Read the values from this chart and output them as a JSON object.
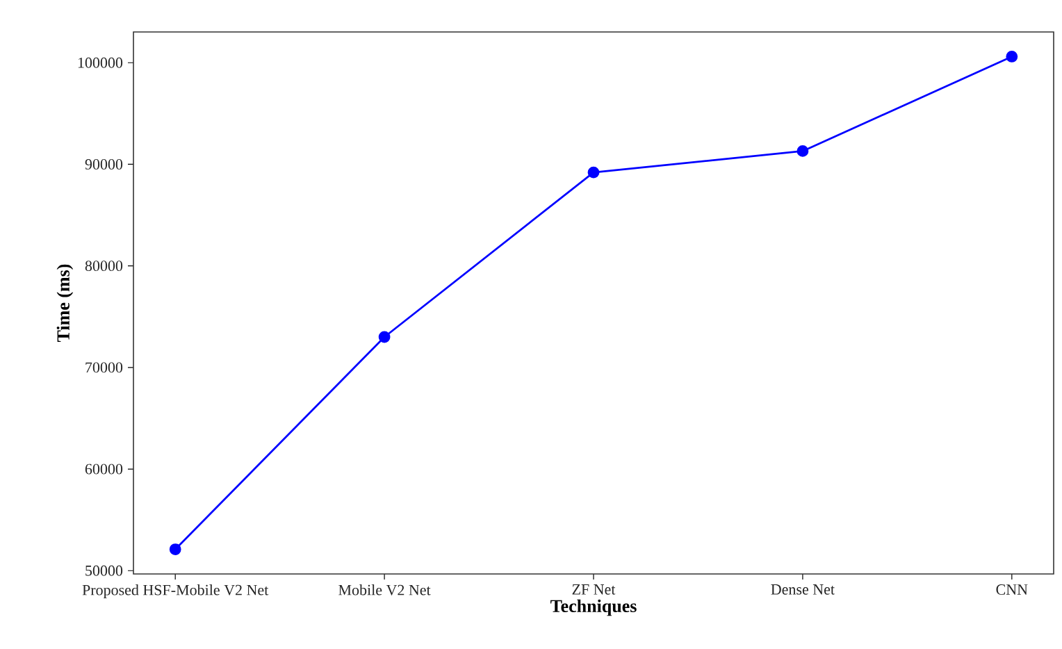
{
  "chart_data": {
    "type": "line",
    "xlabel": "Techniques",
    "ylabel": "Time (ms)",
    "categories": [
      "Proposed HSF-Mobile V2 Net",
      "Mobile V2 Net",
      "ZF Net",
      "Dense Net",
      "CNN"
    ],
    "series": [
      {
        "color": "#0000ff",
        "values": [
          52100,
          73000,
          89200,
          91300,
          100600
        ]
      }
    ],
    "ylim": [
      49675,
      103025
    ],
    "yticks": [
      50000,
      60000,
      70000,
      80000,
      90000,
      100000
    ],
    "marker": "circle",
    "line_style": "solid",
    "grid": false,
    "legend": false
  }
}
